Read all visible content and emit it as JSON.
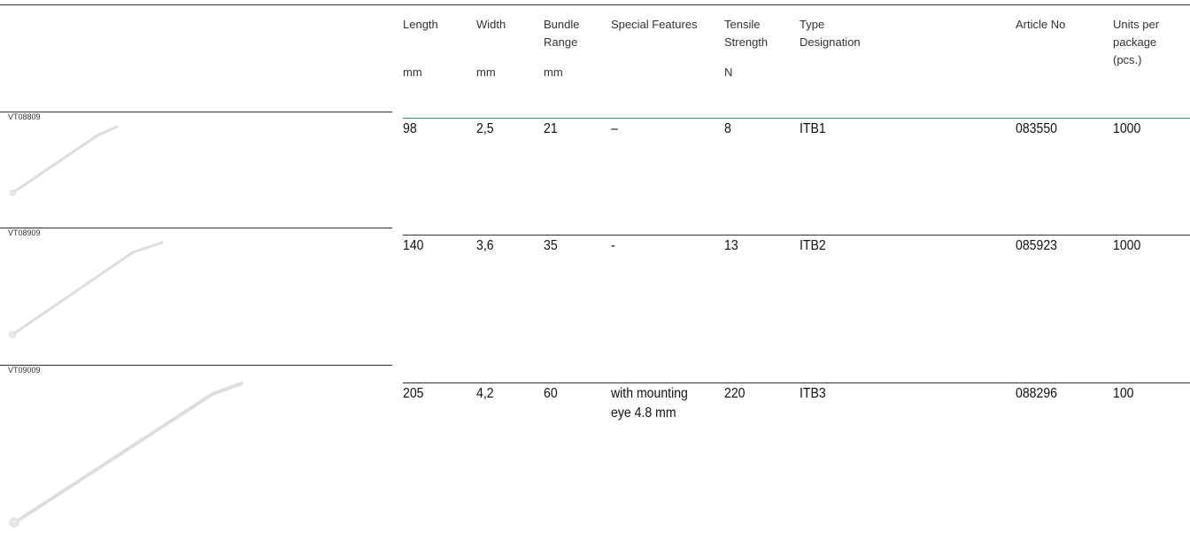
{
  "table": {
    "columns": [
      {
        "lines": [
          "Length"
        ],
        "unit": "mm"
      },
      {
        "lines": [
          "Width"
        ],
        "unit": "mm"
      },
      {
        "lines": [
          "Bundle",
          "Range"
        ],
        "unit": "mm"
      },
      {
        "lines": [
          "Special Features"
        ],
        "unit": null
      },
      {
        "lines": [
          "Tensile",
          "Strength"
        ],
        "unit": "N"
      },
      {
        "lines": [
          "Type",
          "Designation"
        ],
        "unit": null
      },
      {
        "lines": [
          "Article No"
        ],
        "unit": null
      },
      {
        "lines": [
          "Units per",
          "package",
          "(pcs.)"
        ],
        "unit": null
      }
    ],
    "rows": [
      {
        "image": "VT08809",
        "cells": [
          "98",
          "2,5",
          "21",
          "–",
          "8",
          "ITB1",
          "083550",
          "1000"
        ]
      },
      {
        "image": "VT08909",
        "cells": [
          "140",
          "3,6",
          "35",
          "-",
          "13",
          "ITB2",
          "085923",
          "1000"
        ]
      },
      {
        "image": "VT09009",
        "cells": [
          "205",
          "4,2",
          "60",
          "with mounting eye 4.8 mm",
          "220",
          "ITB3",
          "088296",
          "100"
        ]
      }
    ]
  }
}
